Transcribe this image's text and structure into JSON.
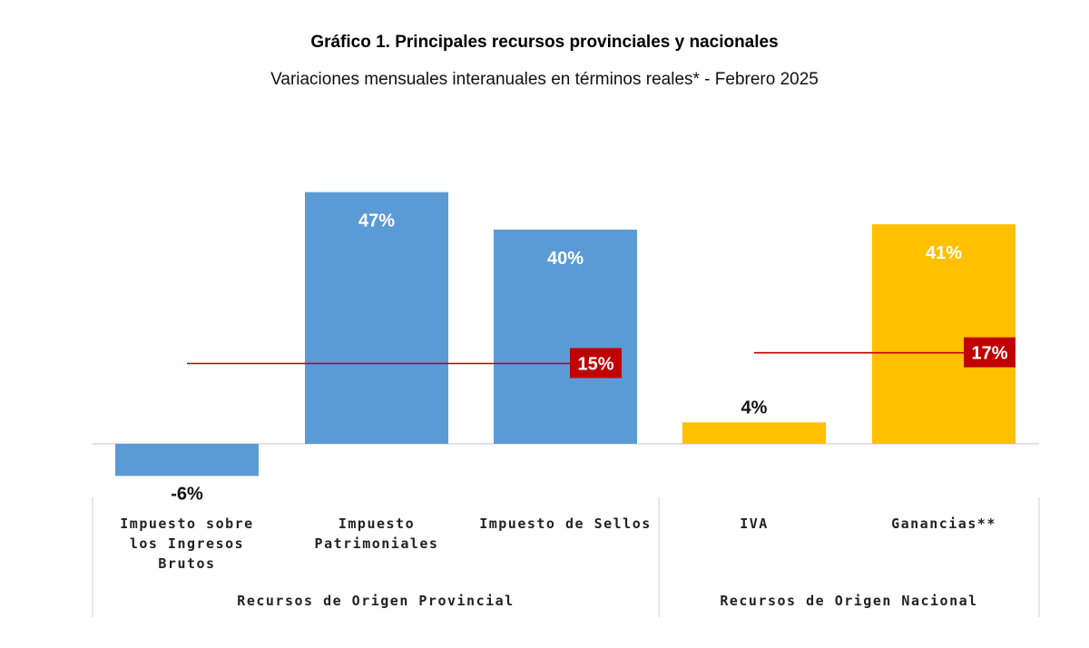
{
  "chart_data": {
    "type": "bar",
    "title": "Gráfico 1. Principales recursos provinciales y nacionales",
    "subtitle": "Variaciones mensuales interanuales en términos reales* - Febrero 2025",
    "categories": [
      "Impuesto sobre los Ingresos Brutos",
      "Impuesto Patrimoniales",
      "Impuesto de Sellos",
      "IVA",
      "Ganancias**"
    ],
    "values": [
      -6,
      47,
      40,
      4,
      41
    ],
    "value_labels": [
      "-6%",
      "47%",
      "40%",
      "4%",
      "41%"
    ],
    "bar_colors": [
      "#5b9bd5",
      "#5b9bd5",
      "#5b9bd5",
      "#ffc000",
      "#ffc000"
    ],
    "groups": [
      {
        "name": "Recursos de Origen Provincial",
        "category_indices": [
          0,
          1,
          2
        ],
        "average_value": 15,
        "average_label": "15%"
      },
      {
        "name": "Recursos de Origen Nacional",
        "category_indices": [
          3,
          4
        ],
        "average_value": 17,
        "average_label": "17%"
      }
    ],
    "average_line_color": "#c00000",
    "grid": false,
    "legend": "none"
  }
}
